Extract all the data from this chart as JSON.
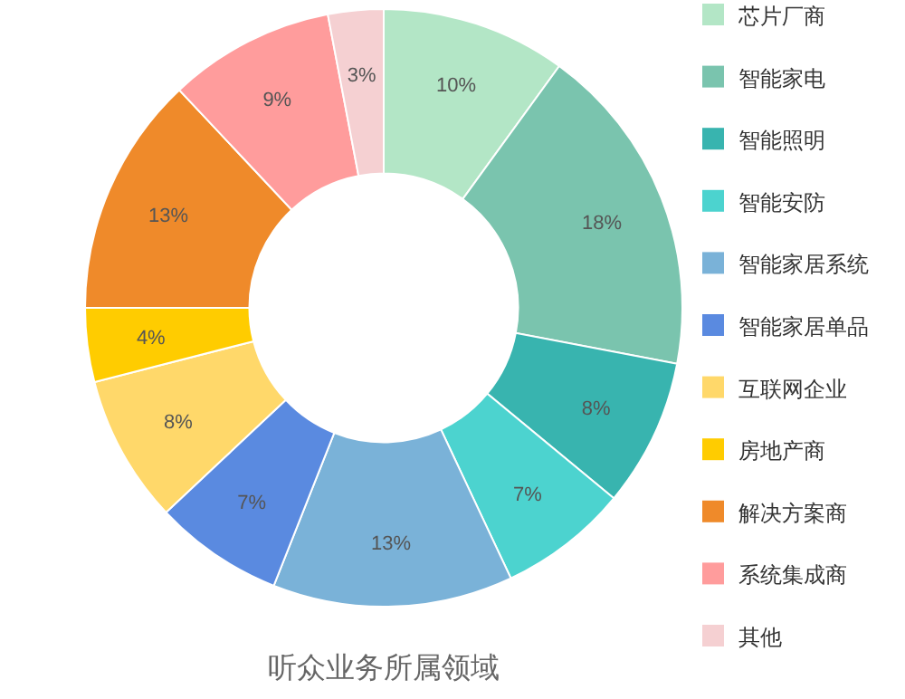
{
  "chart_data": {
    "type": "donut",
    "title": "听众业务所属领域",
    "categories": [
      "芯片厂商",
      "智能家电",
      "智能照明",
      "智能安防",
      "智能家居系统",
      "智能家居单品",
      "互联网企业",
      "房地产商",
      "解决方案商",
      "系统集成商",
      "其他"
    ],
    "values": [
      10,
      18,
      8,
      7,
      13,
      7,
      8,
      4,
      13,
      9,
      3
    ],
    "value_labels": [
      "10%",
      "18%",
      "8%",
      "7%",
      "13%",
      "7%",
      "8%",
      "4%",
      "13%",
      "9%",
      "3%"
    ],
    "colors": [
      "#b3e6c6",
      "#7ac4ae",
      "#38b4af",
      "#4cd3cf",
      "#7ab2d8",
      "#5a8ae0",
      "#ffd86a",
      "#ffcc00",
      "#ef8a2a",
      "#ff9c9c",
      "#f5d0d2"
    ],
    "legend": "right"
  }
}
